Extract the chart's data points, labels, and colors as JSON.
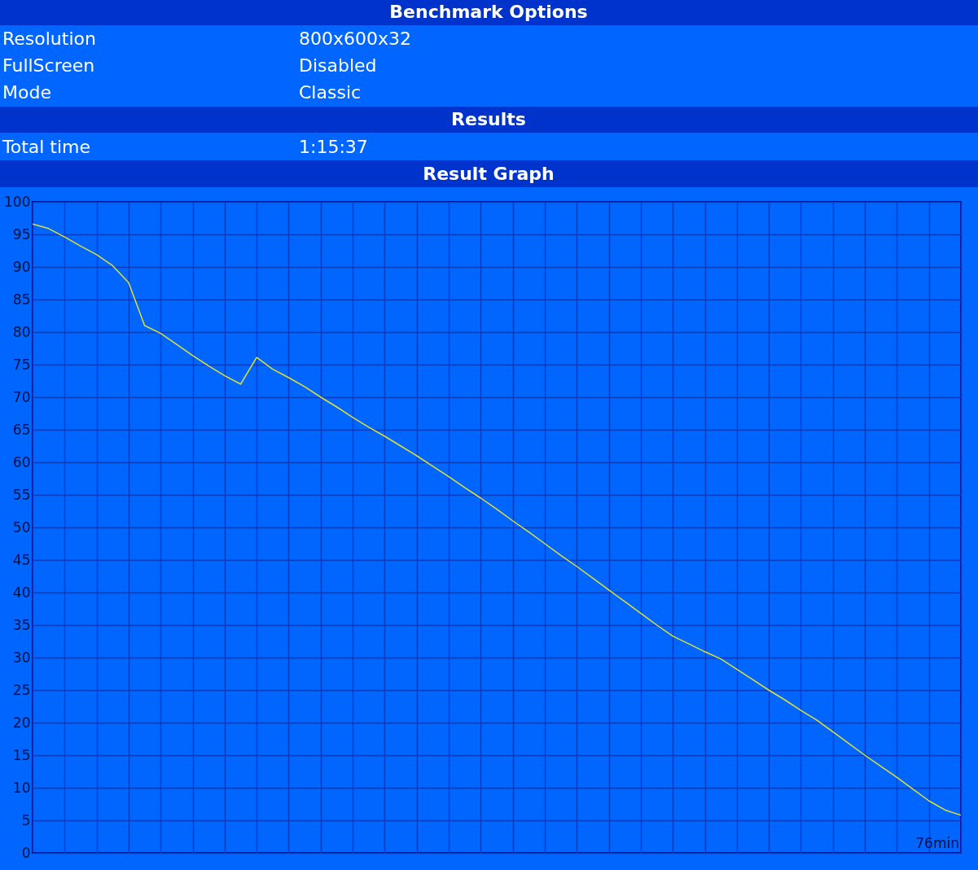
{
  "chart_data": {
    "type": "line",
    "title": "Result Graph",
    "annotations": [
      "Benchmark Options",
      "Resolution",
      "800x600x32",
      "FullScreen",
      "Disabled",
      "Mode",
      "Classic",
      "Results",
      "Total time",
      "1:15:37",
      "76min"
    ],
    "categories": [
      null,
      null,
      null,
      null,
      null,
      null,
      null,
      null,
      null,
      null,
      null,
      null,
      null,
      null,
      null,
      null,
      null,
      null,
      null,
      null,
      null,
      null,
      null,
      null,
      null,
      null,
      null,
      null,
      null,
      null,
      null,
      null,
      null,
      null,
      null,
      null,
      null,
      null,
      null,
      null,
      null,
      null,
      null,
      null,
      null,
      null,
      null,
      null,
      null,
      null,
      null,
      null,
      null,
      null,
      null,
      null,
      null,
      null,
      null
    ],
    "series": [
      {
        "color": "#e0e030",
        "values": [
          96.6,
          95.9,
          94.6,
          93.2,
          91.9,
          90.2,
          87.6,
          81.0,
          79.8,
          78.1,
          76.4,
          74.8,
          73.3,
          72.0,
          76.1,
          74.3,
          73.0,
          71.6,
          70.0,
          68.5,
          66.9,
          65.4,
          64.0,
          62.5,
          61,
          59.4,
          57.8,
          56.1,
          54.5,
          52.8,
          51.0,
          49.3,
          47.5,
          45.7,
          44.0,
          42.2,
          40.4,
          38.6,
          36.8,
          35.0,
          33.3,
          32.1,
          30.9,
          29.8,
          28.2,
          26.6,
          25,
          23.5,
          21.9,
          20.4,
          18.6,
          16.8,
          15,
          13.3,
          11.6,
          9.8,
          8.0,
          6.6,
          5.8
        ]
      }
    ],
    "ylim": [
      0,
      100
    ],
    "yticks": [
      0,
      5,
      10,
      15,
      20,
      25,
      30,
      35,
      40,
      45,
      50,
      55,
      60,
      65,
      70,
      75,
      80,
      85,
      90,
      95,
      100
    ],
    "grid": true,
    "marker": "none",
    "line_style": "solid"
  }
}
